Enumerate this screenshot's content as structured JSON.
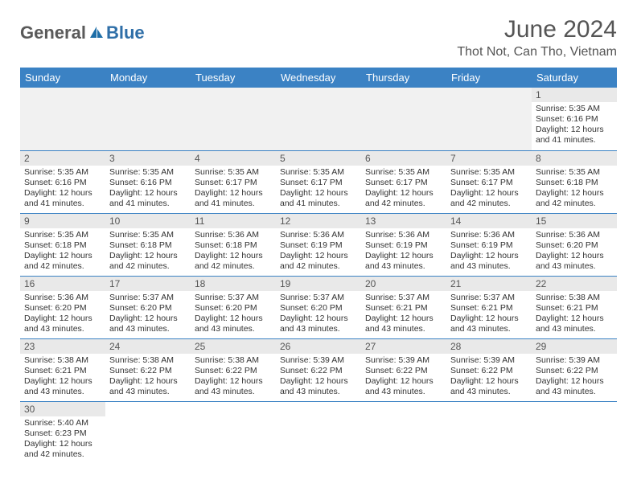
{
  "brand": {
    "general": "General",
    "blue": "Blue"
  },
  "title": "June 2024",
  "location": "Thot Not, Can Tho, Vietnam",
  "colors": {
    "header_bg": "#3b82c4",
    "header_fg": "#ffffff",
    "daynum_bg": "#e9e9e9",
    "row_border": "#3b82c4",
    "empty_bg": "#f1f1f1",
    "brand_gray": "#5a5a5a",
    "brand_blue": "#2f6fa8"
  },
  "day_names": [
    "Sunday",
    "Monday",
    "Tuesday",
    "Wednesday",
    "Thursday",
    "Friday",
    "Saturday"
  ],
  "labels": {
    "sunrise": "Sunrise:",
    "sunset": "Sunset:",
    "daylight": "Daylight:"
  },
  "weeks": [
    [
      null,
      null,
      null,
      null,
      null,
      null,
      {
        "n": "1",
        "sr": "5:35 AM",
        "ss": "6:16 PM",
        "dl": "12 hours and 41 minutes."
      }
    ],
    [
      {
        "n": "2",
        "sr": "5:35 AM",
        "ss": "6:16 PM",
        "dl": "12 hours and 41 minutes."
      },
      {
        "n": "3",
        "sr": "5:35 AM",
        "ss": "6:16 PM",
        "dl": "12 hours and 41 minutes."
      },
      {
        "n": "4",
        "sr": "5:35 AM",
        "ss": "6:17 PM",
        "dl": "12 hours and 41 minutes."
      },
      {
        "n": "5",
        "sr": "5:35 AM",
        "ss": "6:17 PM",
        "dl": "12 hours and 41 minutes."
      },
      {
        "n": "6",
        "sr": "5:35 AM",
        "ss": "6:17 PM",
        "dl": "12 hours and 42 minutes."
      },
      {
        "n": "7",
        "sr": "5:35 AM",
        "ss": "6:17 PM",
        "dl": "12 hours and 42 minutes."
      },
      {
        "n": "8",
        "sr": "5:35 AM",
        "ss": "6:18 PM",
        "dl": "12 hours and 42 minutes."
      }
    ],
    [
      {
        "n": "9",
        "sr": "5:35 AM",
        "ss": "6:18 PM",
        "dl": "12 hours and 42 minutes."
      },
      {
        "n": "10",
        "sr": "5:35 AM",
        "ss": "6:18 PM",
        "dl": "12 hours and 42 minutes."
      },
      {
        "n": "11",
        "sr": "5:36 AM",
        "ss": "6:18 PM",
        "dl": "12 hours and 42 minutes."
      },
      {
        "n": "12",
        "sr": "5:36 AM",
        "ss": "6:19 PM",
        "dl": "12 hours and 42 minutes."
      },
      {
        "n": "13",
        "sr": "5:36 AM",
        "ss": "6:19 PM",
        "dl": "12 hours and 43 minutes."
      },
      {
        "n": "14",
        "sr": "5:36 AM",
        "ss": "6:19 PM",
        "dl": "12 hours and 43 minutes."
      },
      {
        "n": "15",
        "sr": "5:36 AM",
        "ss": "6:20 PM",
        "dl": "12 hours and 43 minutes."
      }
    ],
    [
      {
        "n": "16",
        "sr": "5:36 AM",
        "ss": "6:20 PM",
        "dl": "12 hours and 43 minutes."
      },
      {
        "n": "17",
        "sr": "5:37 AM",
        "ss": "6:20 PM",
        "dl": "12 hours and 43 minutes."
      },
      {
        "n": "18",
        "sr": "5:37 AM",
        "ss": "6:20 PM",
        "dl": "12 hours and 43 minutes."
      },
      {
        "n": "19",
        "sr": "5:37 AM",
        "ss": "6:20 PM",
        "dl": "12 hours and 43 minutes."
      },
      {
        "n": "20",
        "sr": "5:37 AM",
        "ss": "6:21 PM",
        "dl": "12 hours and 43 minutes."
      },
      {
        "n": "21",
        "sr": "5:37 AM",
        "ss": "6:21 PM",
        "dl": "12 hours and 43 minutes."
      },
      {
        "n": "22",
        "sr": "5:38 AM",
        "ss": "6:21 PM",
        "dl": "12 hours and 43 minutes."
      }
    ],
    [
      {
        "n": "23",
        "sr": "5:38 AM",
        "ss": "6:21 PM",
        "dl": "12 hours and 43 minutes."
      },
      {
        "n": "24",
        "sr": "5:38 AM",
        "ss": "6:22 PM",
        "dl": "12 hours and 43 minutes."
      },
      {
        "n": "25",
        "sr": "5:38 AM",
        "ss": "6:22 PM",
        "dl": "12 hours and 43 minutes."
      },
      {
        "n": "26",
        "sr": "5:39 AM",
        "ss": "6:22 PM",
        "dl": "12 hours and 43 minutes."
      },
      {
        "n": "27",
        "sr": "5:39 AM",
        "ss": "6:22 PM",
        "dl": "12 hours and 43 minutes."
      },
      {
        "n": "28",
        "sr": "5:39 AM",
        "ss": "6:22 PM",
        "dl": "12 hours and 43 minutes."
      },
      {
        "n": "29",
        "sr": "5:39 AM",
        "ss": "6:22 PM",
        "dl": "12 hours and 43 minutes."
      }
    ],
    [
      {
        "n": "30",
        "sr": "5:40 AM",
        "ss": "6:23 PM",
        "dl": "12 hours and 42 minutes."
      },
      null,
      null,
      null,
      null,
      null,
      null
    ]
  ]
}
